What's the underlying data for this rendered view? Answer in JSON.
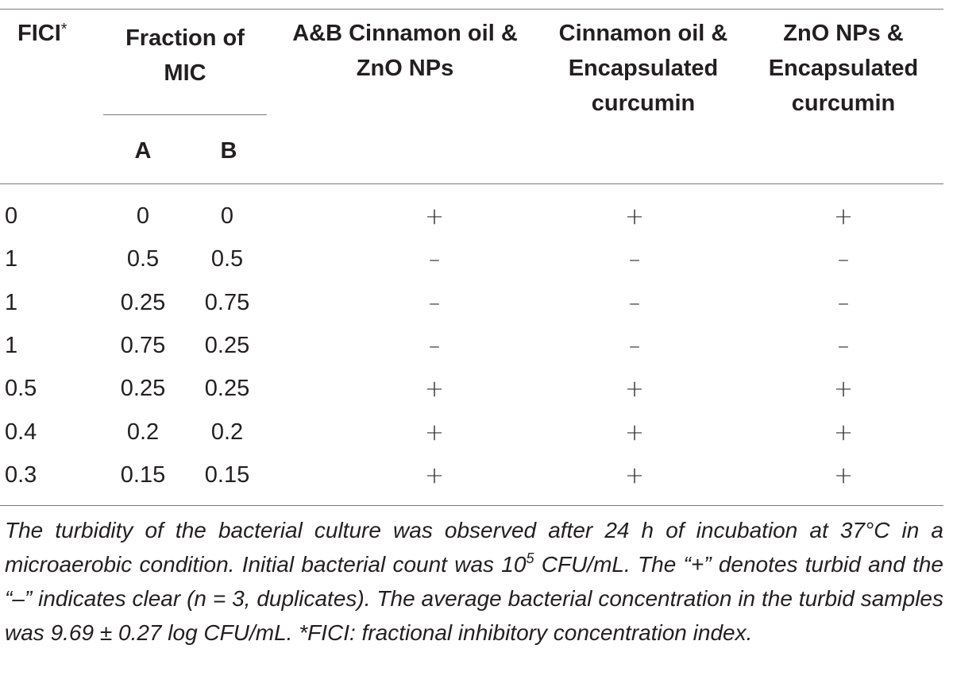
{
  "headers": {
    "fici": "FICI",
    "fici_mark": "*",
    "fraction": "Fraction of\nMIC",
    "a": "A",
    "b": "B",
    "col1": "A&B Cinnamon oil &\nZnO NPs",
    "col2": "Cinnamon oil &\nEncapsulated\ncurcumin",
    "col3": "ZnO NPs &\nEncapsulated\ncurcumin"
  },
  "rows": [
    {
      "fici": "0",
      "a": "0",
      "b": "0",
      "s1": "+",
      "s2": "+",
      "s3": "+"
    },
    {
      "fici": "1",
      "a": "0.5",
      "b": "0.5",
      "s1": "–",
      "s2": "–",
      "s3": "–"
    },
    {
      "fici": "1",
      "a": "0.25",
      "b": "0.75",
      "s1": "–",
      "s2": "–",
      "s3": "–"
    },
    {
      "fici": "1",
      "a": "0.75",
      "b": "0.25",
      "s1": "–",
      "s2": "–",
      "s3": "–"
    },
    {
      "fici": "0.5",
      "a": "0.25",
      "b": "0.25",
      "s1": "+",
      "s2": "+",
      "s3": "+"
    },
    {
      "fici": "0.4",
      "a": "0.2",
      "b": "0.2",
      "s1": "+",
      "s2": "+",
      "s3": "+"
    },
    {
      "fici": "0.3",
      "a": "0.15",
      "b": "0.15",
      "s1": "+",
      "s2": "+",
      "s3": "+"
    }
  ],
  "footnote": {
    "part1": "The turbidity of the bacterial culture was observed after 24 h of incubation at 37°C in a microaerobic condition. Initial bacterial count was 10",
    "exponent": "5",
    "part2": " CFU/mL. The “+” denotes turbid and the “–” indicates clear (n = 3, duplicates). The average bacterial concentration in the turbid samples was 9.69 ± 0.27 log CFU/mL. *FICI: fractional inhibitory concentration index."
  }
}
